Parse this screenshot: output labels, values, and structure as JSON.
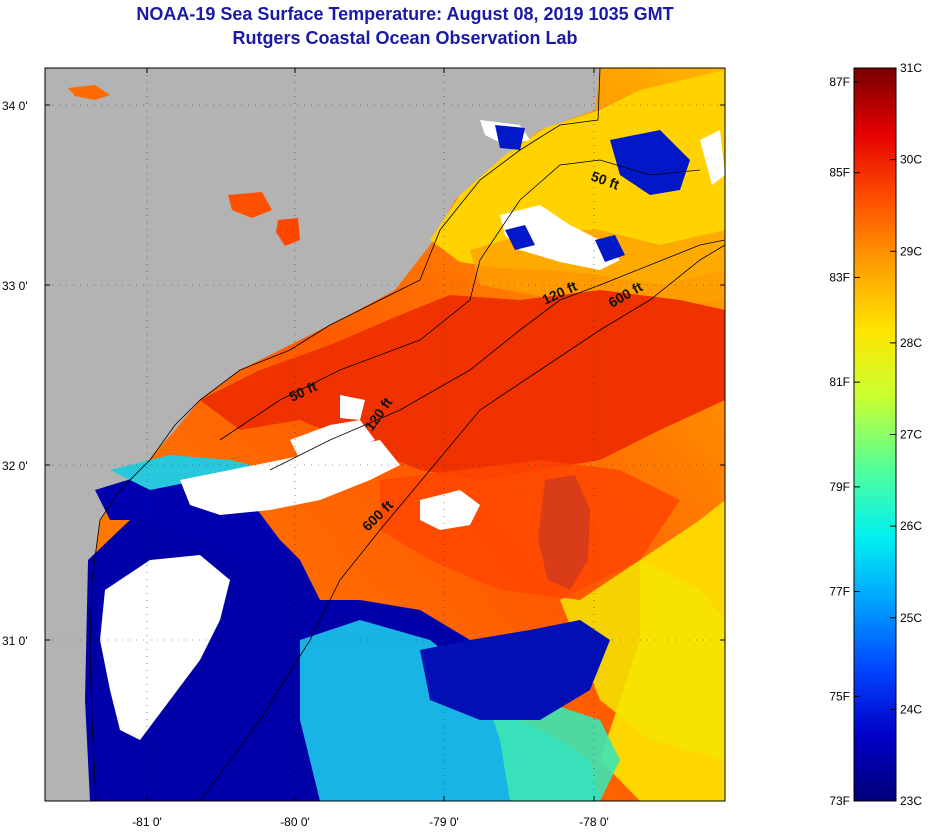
{
  "title": {
    "line1": "NOAA-19 Sea Surface Temperature:  August 08, 2019 1035 GMT",
    "line2": "Rutgers Coastal Ocean Observation Lab"
  },
  "map": {
    "lat_labels": [
      "34 0'",
      "33 0'",
      "32 0'",
      "31 0'"
    ],
    "lon_labels": [
      "-81 0'",
      "-80 0'",
      "-79 0'",
      "-78 0'"
    ],
    "contour_labels": [
      "50 ft",
      "120 ft",
      "600 ft",
      "50 ft",
      "120 ft",
      "600 ft"
    ],
    "colors": {
      "land": "#b3b3b3",
      "cloud": "#ffffff",
      "coast_line": "#000000"
    }
  },
  "colorbar": {
    "fahrenheit_labels": [
      "87F",
      "85F",
      "83F",
      "81F",
      "79F",
      "77F",
      "75F",
      "73F"
    ],
    "celsius_labels": [
      "31C",
      "30C",
      "29C",
      "28C",
      "27C",
      "26C",
      "25C",
      "24C",
      "23C"
    ],
    "colors": [
      "#00007a",
      "#0000c8",
      "#0046ff",
      "#00a0ff",
      "#00f0f0",
      "#50ff9c",
      "#c8ff32",
      "#ffe600",
      "#ffa000",
      "#ff5000",
      "#e60000",
      "#780000"
    ]
  }
}
